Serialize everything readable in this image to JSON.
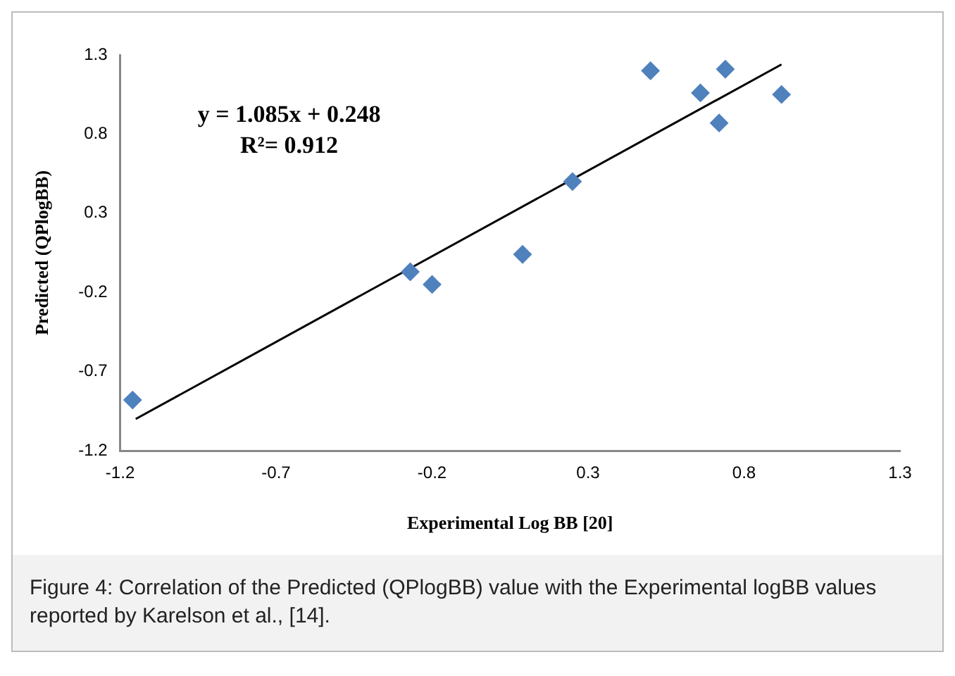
{
  "chart_data": {
    "type": "scatter",
    "xlabel": "Experimental Log BB [20]",
    "ylabel": "Predicted (QPlogBB)",
    "xlim": [
      -1.2,
      1.3
    ],
    "xticks": [
      -1.2,
      -0.7,
      -0.2,
      0.3,
      0.8,
      1.3
    ],
    "ylim": [
      -1.2,
      1.3
    ],
    "yticks": [
      -1.2,
      -0.7,
      -0.2,
      0.3,
      0.8,
      1.3
    ],
    "grid": false,
    "legend": false,
    "marker": "diamond",
    "series": [
      {
        "type": "scatter",
        "color": "#4f81bd",
        "x": [
          -1.16,
          -0.27,
          -0.2,
          0.09,
          0.25,
          0.5,
          0.66,
          0.74,
          0.72,
          0.92
        ],
        "values": [
          -0.88,
          -0.07,
          -0.15,
          0.04,
          0.5,
          1.2,
          1.06,
          1.21,
          0.87,
          1.05
        ]
      },
      {
        "type": "line",
        "color": "#000000",
        "marker": "none",
        "x": [
          -1.15,
          0.92
        ],
        "values": [
          -1.0,
          1.24
        ]
      }
    ],
    "annotations": [
      "y = 1.085x + 0.248",
      "R²= 0.912",
      "Figure 4: Correlation of the Predicted (QPlogBB) value with the Experimental logBB values reported by Karelson et al., [14]."
    ]
  }
}
